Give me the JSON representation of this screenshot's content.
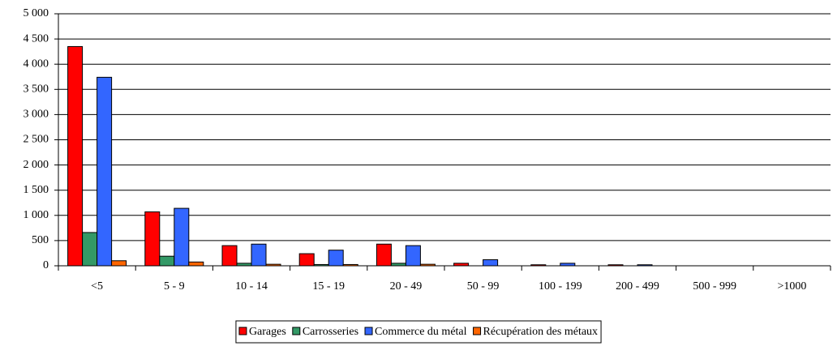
{
  "chart_data": {
    "type": "bar",
    "categories": [
      "<5",
      "5 - 9",
      "10 - 14",
      "15 - 19",
      "20 - 49",
      "50 - 99",
      "100 - 199",
      "200 - 499",
      "500 - 999",
      ">1000"
    ],
    "series": [
      {
        "name": "Garages",
        "color": "#ff0000",
        "values": [
          4350,
          1070,
          400,
          240,
          430,
          50,
          20,
          20,
          0,
          0
        ]
      },
      {
        "name": "Carrosseries",
        "color": "#339966",
        "values": [
          660,
          190,
          50,
          25,
          50,
          0,
          0,
          0,
          0,
          0
        ]
      },
      {
        "name": "Commerce du métal",
        "color": "#3366ff",
        "values": [
          3740,
          1140,
          430,
          310,
          400,
          120,
          50,
          20,
          0,
          0
        ]
      },
      {
        "name": "Récupération des métaux",
        "color": "#ff6600",
        "values": [
          100,
          75,
          30,
          25,
          30,
          0,
          0,
          0,
          0,
          0
        ]
      }
    ],
    "ylim": [
      0,
      5000
    ],
    "yticks": [
      0,
      500,
      {
        "value": 1000,
        "label": "1 000"
      },
      {
        "value": 1500,
        "label": "1 500"
      },
      {
        "value": 2000,
        "label": "2 000"
      },
      {
        "value": 2500,
        "label": "2 500"
      },
      {
        "value": 3000,
        "label": "3 000"
      },
      {
        "value": 3500,
        "label": "3 500"
      },
      {
        "value": 4000,
        "label": "4 000"
      },
      {
        "value": 4500,
        "label": "4 500"
      },
      {
        "value": 5000,
        "label": "5 000"
      }
    ],
    "grid": true,
    "legend": "bottom"
  }
}
